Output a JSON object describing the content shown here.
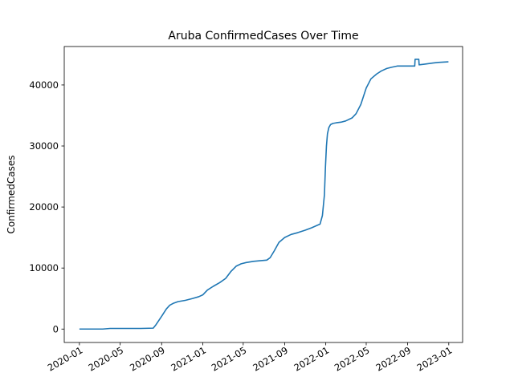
{
  "chart_data": {
    "type": "line",
    "title": "Aruba  ConfirmedCases Over Time",
    "xlabel": "",
    "ylabel": "ConfirmedCases",
    "grid": false,
    "legend": "none",
    "line_color": "#1f77b4",
    "x_ticks": [
      "2020-01",
      "2020-05",
      "2020-09",
      "2021-01",
      "2021-05",
      "2021-09",
      "2022-01",
      "2022-05",
      "2022-09",
      "2023-01"
    ],
    "x_range": [
      "2019-11-17",
      "2023-02-11"
    ],
    "y_ticks": [
      0,
      10000,
      20000,
      30000,
      40000
    ],
    "ylim": [
      -2200,
      46300
    ],
    "series": [
      {
        "x": [
          "2020-01-01",
          "2020-03-10",
          "2020-04-01",
          "2020-07-01",
          "2020-08-07",
          "2020-08-15",
          "2020-09-01",
          "2020-09-15",
          "2020-09-25",
          "2020-10-05",
          "2020-10-20",
          "2020-11-10",
          "2020-12-01",
          "2020-12-20",
          "2021-01-01",
          "2021-01-15",
          "2021-02-01",
          "2021-02-20",
          "2021-03-10",
          "2021-03-25",
          "2021-04-10",
          "2021-04-25",
          "2021-05-10",
          "2021-06-01",
          "2021-06-20",
          "2021-07-10",
          "2021-07-20",
          "2021-08-01",
          "2021-08-15",
          "2021-09-01",
          "2021-09-20",
          "2021-10-10",
          "2021-11-01",
          "2021-11-20",
          "2021-12-15",
          "2021-12-22",
          "2021-12-28",
          "2021-12-31",
          "2022-01-03",
          "2022-01-06",
          "2022-01-10",
          "2022-01-15",
          "2022-01-22",
          "2022-02-01",
          "2022-02-15",
          "2022-03-01",
          "2022-03-20",
          "2022-04-01",
          "2022-04-15",
          "2022-05-01",
          "2022-05-15",
          "2022-06-01",
          "2022-06-15",
          "2022-07-01",
          "2022-07-15",
          "2022-08-01",
          "2022-08-15",
          "2022-09-01",
          "2022-09-15",
          "2022-09-22",
          "2022-09-23",
          "2022-10-04",
          "2022-10-05",
          "2022-10-20",
          "2022-11-15",
          "2022-12-01",
          "2022-12-31"
        ],
        "y": [
          0,
          0,
          100,
          100,
          150,
          700,
          2100,
          3300,
          3900,
          4200,
          4500,
          4700,
          5000,
          5300,
          5600,
          6400,
          7000,
          7600,
          8300,
          9400,
          10300,
          10700,
          10900,
          11100,
          11200,
          11300,
          11700,
          12800,
          14200,
          15000,
          15500,
          15800,
          16200,
          16600,
          17200,
          18600,
          22000,
          26500,
          30000,
          32000,
          33000,
          33500,
          33700,
          33800,
          33900,
          34100,
          34600,
          35300,
          36800,
          39500,
          41000,
          41800,
          42300,
          42700,
          42900,
          43100,
          43100,
          43100,
          43100,
          43100,
          44200,
          44200,
          43300,
          43400,
          43600,
          43700,
          43800
        ]
      }
    ]
  }
}
